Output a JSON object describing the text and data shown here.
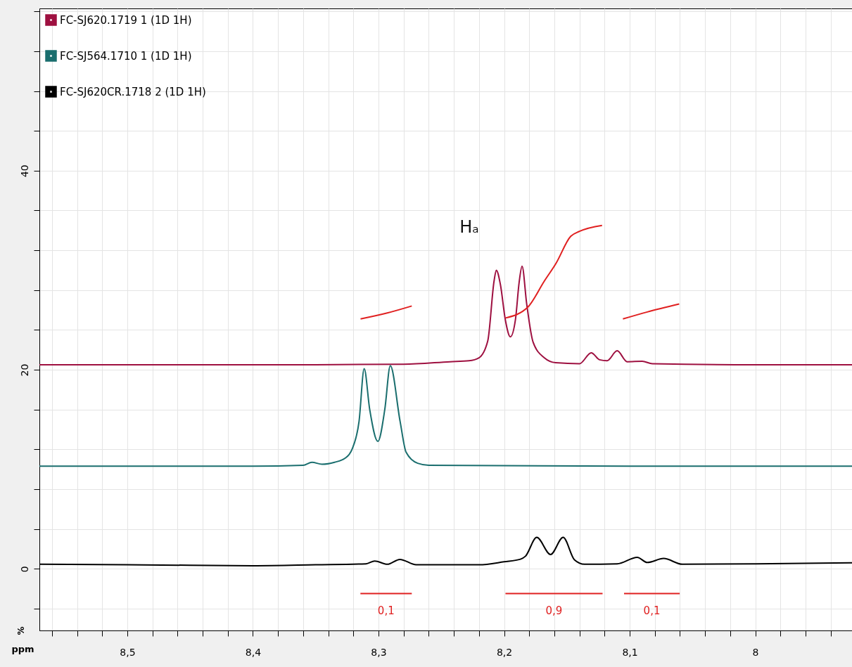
{
  "chart_data": {
    "type": "line",
    "xlabel": "ppm",
    "ylabel": "%",
    "xlim": [
      8.57,
      7.923
    ],
    "ylim": [
      -6.2,
      56.3
    ],
    "xticks": [
      {
        "value": 8.56,
        "label": null
      },
      {
        "value": 8.54,
        "label": null
      },
      {
        "value": 8.52,
        "label": null
      },
      {
        "value": 8.5,
        "label": "8,5"
      },
      {
        "value": 8.48,
        "label": null
      },
      {
        "value": 8.46,
        "label": null
      },
      {
        "value": 8.44,
        "label": null
      },
      {
        "value": 8.42,
        "label": null
      },
      {
        "value": 8.4,
        "label": "8,4"
      },
      {
        "value": 8.38,
        "label": null
      },
      {
        "value": 8.36,
        "label": null
      },
      {
        "value": 8.34,
        "label": null
      },
      {
        "value": 8.32,
        "label": null
      },
      {
        "value": 8.3,
        "label": "8,3"
      },
      {
        "value": 8.28,
        "label": null
      },
      {
        "value": 8.26,
        "label": null
      },
      {
        "value": 8.24,
        "label": null
      },
      {
        "value": 8.22,
        "label": null
      },
      {
        "value": 8.2,
        "label": "8,2"
      },
      {
        "value": 8.18,
        "label": null
      },
      {
        "value": 8.16,
        "label": null
      },
      {
        "value": 8.14,
        "label": null
      },
      {
        "value": 8.12,
        "label": null
      },
      {
        "value": 8.1,
        "label": "8,1"
      },
      {
        "value": 8.08,
        "label": null
      },
      {
        "value": 8.06,
        "label": null
      },
      {
        "value": 8.04,
        "label": null
      },
      {
        "value": 8.02,
        "label": null
      },
      {
        "value": 8,
        "label": "8"
      },
      {
        "value": 7.98,
        "label": null
      },
      {
        "value": 7.96,
        "label": null
      },
      {
        "value": 7.94,
        "label": null
      }
    ],
    "yticks": [
      {
        "value": -4,
        "label": null
      },
      0,
      {
        "value": 4,
        "label": null
      },
      {
        "value": 8,
        "label": null
      },
      {
        "value": 12,
        "label": null
      },
      {
        "value": 16,
        "label": null
      },
      20,
      {
        "value": 24,
        "label": null
      },
      {
        "value": 28,
        "label": null
      },
      {
        "value": 32,
        "label": null
      },
      {
        "value": 36,
        "label": null
      },
      40,
      {
        "value": 44,
        "label": null
      },
      {
        "value": 48,
        "label": null
      },
      {
        "value": 52,
        "label": null
      },
      {
        "value": 56,
        "label": null
      }
    ],
    "grid": true,
    "legend": "top left",
    "marker": "none",
    "line_style": "solid",
    "series": [
      {
        "name": "FC-SJ620.1719 1 (1D 1H)",
        "color": "#9e1040",
        "x": [
          8.57,
          8.45,
          8.35,
          8.28,
          8.243,
          8.228,
          8.22,
          8.213,
          8.208,
          8.2062,
          8.203,
          8.199,
          8.195,
          8.191,
          8.188,
          8.1857,
          8.182,
          8.177,
          8.168,
          8.159,
          8.14,
          8.1306,
          8.124,
          8.118,
          8.11,
          8.102,
          8.09,
          8.082,
          8.0,
          7.923
        ],
        "values": [
          20.5,
          20.5,
          20.5,
          20.55,
          20.8,
          20.9,
          21.2,
          22.9,
          28.9,
          30.0,
          28.6,
          25,
          23.3,
          25,
          28.8,
          30.4,
          26.6,
          22.8,
          21.2,
          20.7,
          20.6,
          21.7,
          21.0,
          20.9,
          21.9,
          20.8,
          20.85,
          20.6,
          20.5,
          20.5
        ]
      },
      {
        "name": "FC-SJ564.1710 1 (1D 1H)",
        "color": "#1a6e6e",
        "x": [
          8.57,
          8.4,
          8.36,
          8.353,
          8.345,
          8.335,
          8.3267,
          8.3211,
          8.3155,
          8.3114,
          8.307,
          8.3005,
          8.295,
          8.2906,
          8.2828,
          8.278,
          8.2688,
          8.26,
          8.1,
          7.923
        ],
        "values": [
          10.3,
          10.3,
          10.4,
          10.7,
          10.5,
          10.7,
          11.1,
          12.0,
          14.8,
          20.1,
          16,
          12.8,
          16,
          20.4,
          14.8,
          11.7,
          10.6,
          10.4,
          10.3,
          10.3
        ]
      },
      {
        "name": "FC-SJ620CR.1718 2 (1D 1H)",
        "color": "#000000",
        "x": [
          8.57,
          8.5,
          8.45,
          8.4,
          8.35,
          8.31,
          8.303,
          8.293,
          8.283,
          8.27,
          8.22,
          8.2,
          8.187,
          8.183,
          8.174,
          8.163,
          8.153,
          8.144,
          8.136,
          8.11,
          8.094,
          8.086,
          8.073,
          8.058,
          8.0,
          7.923
        ],
        "values": [
          0.45,
          0.4,
          0.35,
          0.3,
          0.4,
          0.5,
          0.78,
          0.45,
          0.94,
          0.4,
          0.4,
          0.7,
          0.96,
          1.26,
          3.15,
          1.43,
          3.15,
          0.9,
          0.45,
          0.5,
          1.15,
          0.63,
          1.03,
          0.45,
          0.5,
          0.6
        ]
      },
      {
        "color": "#e02020",
        "x": [
          8.3143,
          8.293,
          8.2735
        ],
        "values": [
          25.1,
          25.7,
          26.4
        ]
      },
      {
        "color": "#e02020",
        "x": [
          8.1988,
          8.181,
          8.168,
          8.1586,
          8.147,
          8.14,
          8.122
        ],
        "values": [
          25.2,
          26.3,
          28.9,
          30.7,
          33.4,
          33.9,
          34.5
        ]
      },
      {
        "color": "#e02020",
        "x": [
          8.1054,
          8.086,
          8.0606
        ],
        "values": [
          25.1,
          25.8,
          26.6
        ]
      },
      {
        "color": "#e02020",
        "x": [
          8.3144,
          8.2735
        ],
        "values": [
          -2.5,
          -2.5
        ]
      },
      {
        "color": "#e02020",
        "x": [
          8.1989,
          8.1216
        ],
        "values": [
          -2.5,
          -2.5
        ]
      },
      {
        "color": "#e02020",
        "x": [
          8.1045,
          8.0602
        ],
        "values": [
          -2.5,
          -2.5
        ]
      }
    ],
    "annotations": [
      "Hₐ",
      {
        "text": "0,1",
        "x": 8.29395,
        "y": -2.5
      },
      {
        "text": "0,9",
        "x": 8.16025,
        "y": -2.5
      },
      {
        "text": "0,1",
        "x": 8.08235,
        "y": -2.5
      }
    ]
  }
}
